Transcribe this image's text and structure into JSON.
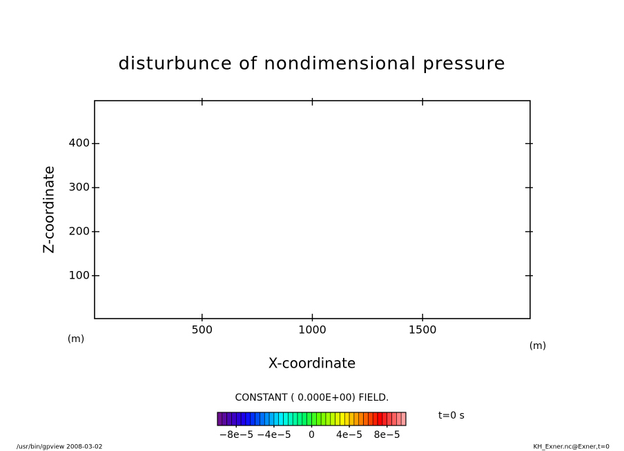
{
  "chart_data": {
    "type": "contour",
    "title": "disturbunce of nondimensional pressure",
    "x_label": "X-coordinate",
    "y_label": "Z-coordinate",
    "x_units": "(m)",
    "y_units": "(m)",
    "xlim": [
      12.5,
      1987.5
    ],
    "ylim": [
      2.5,
      497.5
    ],
    "xticks": [
      500,
      1000,
      1500
    ],
    "yticks": [
      100,
      200,
      300,
      400
    ],
    "field_note": "CONSTANT ( 0.000E+00) FIELD.",
    "time_label": "t=0 s",
    "footer_left": "/usr/bin/gpview   2008-03-02",
    "footer_right": "KH_Exner.nc@Exner,t=0",
    "colorbar": {
      "lim": [
        -0.0001,
        0.0001
      ],
      "ticks": [
        {
          "value": -8e-05,
          "label": "−8e−5"
        },
        {
          "value": -4e-05,
          "label": "−4e−5"
        },
        0,
        {
          "value": 4e-05,
          "label": "4e−5"
        },
        {
          "value": 8e-05,
          "label": "8e−5"
        }
      ],
      "colors": [
        "#6a0f8e",
        "#5a0a9e",
        "#4b05b0",
        "#3c00c4",
        "#2d00d8",
        "#1e00ec",
        "#0f10ff",
        "#0030ff",
        "#0050ff",
        "#0070ff",
        "#0090ff",
        "#00b0ff",
        "#00d0ff",
        "#00f0ff",
        "#00ffe0",
        "#00ffc0",
        "#00ffa0",
        "#00ff80",
        "#00ff60",
        "#20ff40",
        "#40ff20",
        "#60ff00",
        "#80ff00",
        "#a0ff00",
        "#c0ff00",
        "#e0ff00",
        "#ffff00",
        "#ffe000",
        "#ffc000",
        "#ffa000",
        "#ff8000",
        "#ff6000",
        "#ff4000",
        "#ff2000",
        "#ff0000",
        "#ff2020",
        "#ff4040",
        "#ff6060",
        "#ff8080",
        "#ffa0a0"
      ]
    }
  }
}
